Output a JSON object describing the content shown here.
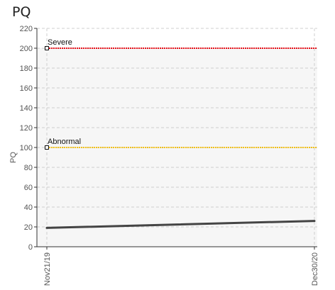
{
  "chart_data": {
    "type": "line",
    "title": "PQ",
    "ylabel": "PQ",
    "xlabel": "",
    "ylim": [
      0,
      220
    ],
    "yticks": [
      0,
      20,
      40,
      60,
      80,
      100,
      120,
      140,
      160,
      180,
      200,
      220
    ],
    "xticks": [
      "Nov21/19",
      "Dec30/20"
    ],
    "grid": true,
    "series": [
      {
        "values": [
          19,
          26
        ],
        "color": "#444444"
      }
    ],
    "thresholds": [
      {
        "label": "Severe",
        "value": 200,
        "color": "#e8121b"
      },
      {
        "label": "Abnormal",
        "value": 100,
        "color": "#f2c21b"
      }
    ]
  }
}
